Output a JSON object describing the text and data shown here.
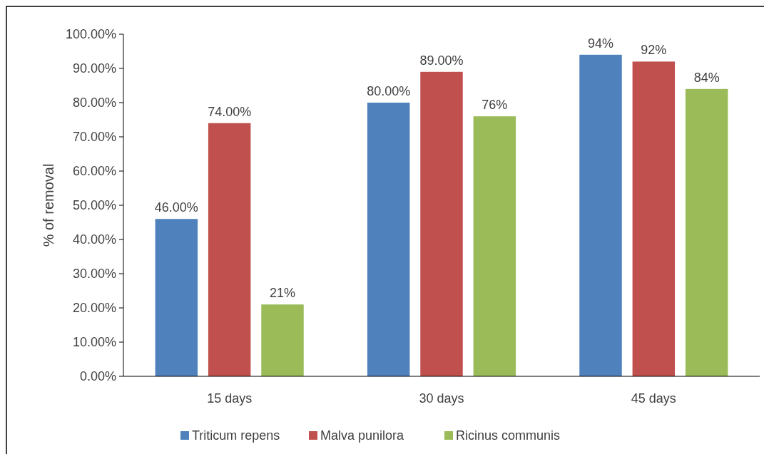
{
  "chart_data": {
    "type": "bar",
    "ylabel": "% of removal",
    "categories": [
      "15 days",
      "30 days",
      "45 days"
    ],
    "series": [
      {
        "name": "Triticum repens",
        "color": "#4f81bd",
        "values": [
          46,
          80,
          94
        ],
        "value_labels": [
          "46.00%",
          "80.00%",
          "94%"
        ]
      },
      {
        "name": "Malva punilora",
        "color": "#c0504d",
        "values": [
          74,
          89,
          92
        ],
        "value_labels": [
          "74.00%",
          "89.00%",
          "92%"
        ]
      },
      {
        "name": "Ricinus communis",
        "color": "#9bbb59",
        "values": [
          21,
          76,
          84
        ],
        "value_labels": [
          "21%",
          "76%",
          "84%"
        ]
      }
    ],
    "ylim": [
      0,
      100
    ],
    "yticks": [
      {
        "value": 0,
        "label": "0.00%"
      },
      {
        "value": 10,
        "label": "10.00%"
      },
      {
        "value": 20,
        "label": "20.00%"
      },
      {
        "value": 30,
        "label": "30.00%"
      },
      {
        "value": 40,
        "label": "40.00%"
      },
      {
        "value": 50,
        "label": "50.00%"
      },
      {
        "value": 60,
        "label": "60.00%"
      },
      {
        "value": 70,
        "label": "70.00%"
      },
      {
        "value": 80,
        "label": "80.00%"
      },
      {
        "value": 90,
        "label": "90.00%"
      },
      {
        "value": 100,
        "label": "100.00%"
      }
    ],
    "grid": false,
    "legend": "bottom"
  }
}
